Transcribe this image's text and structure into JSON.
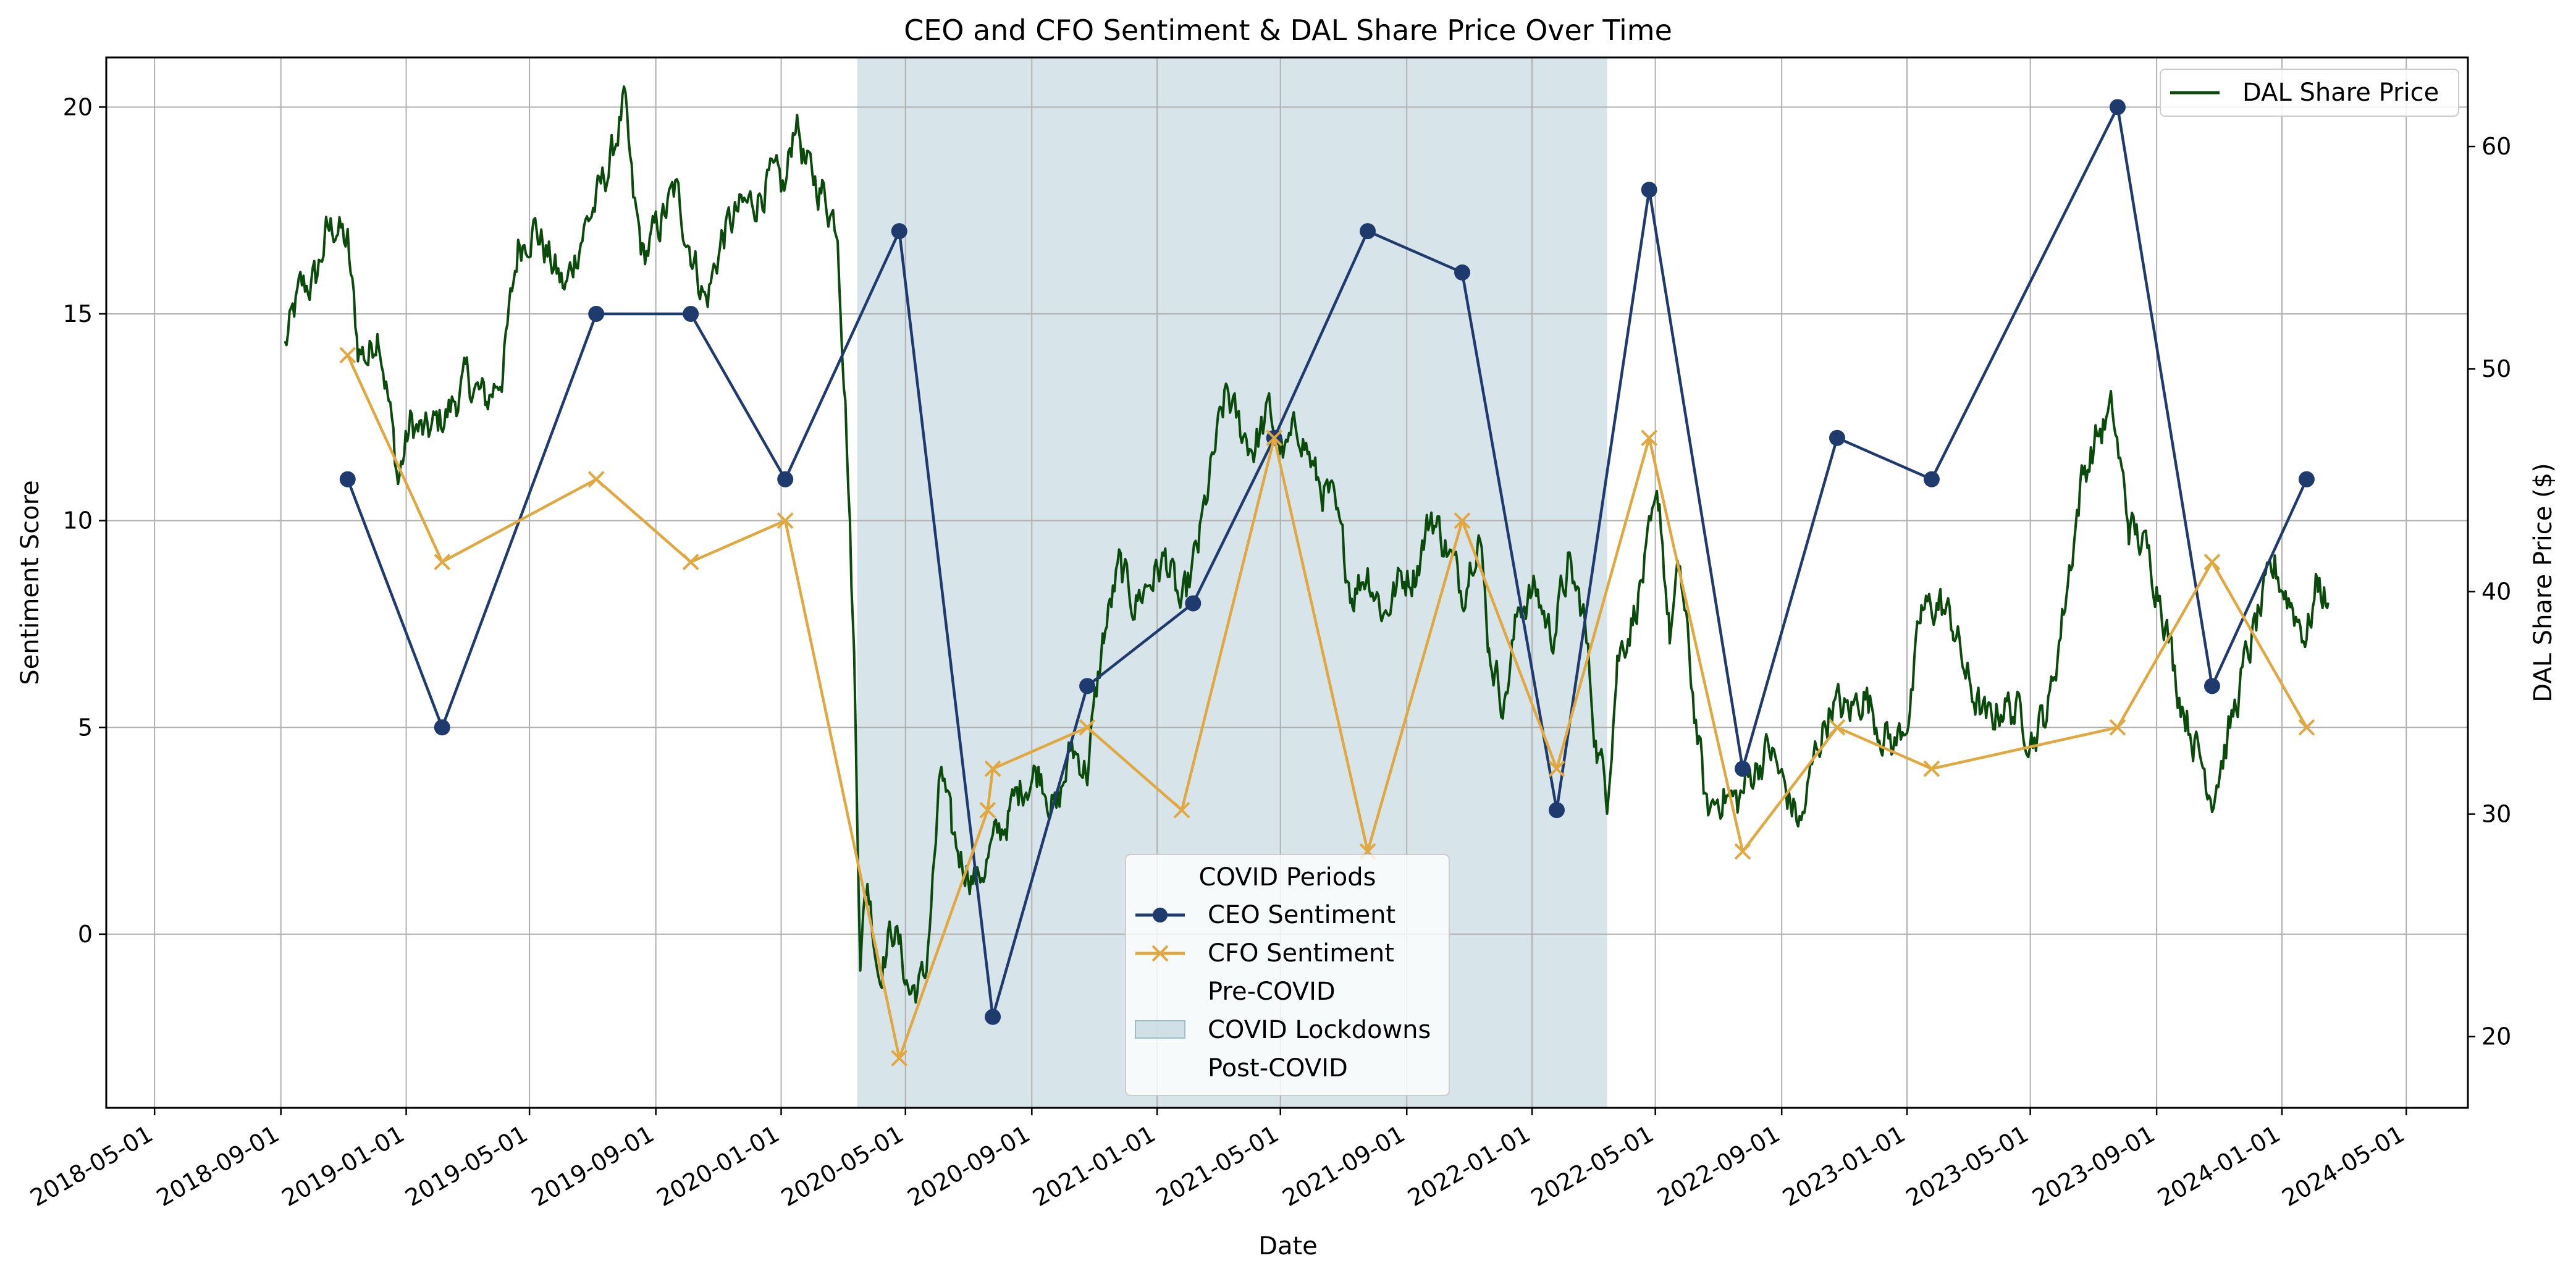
{
  "chart_data": {
    "type": "line",
    "title": "CEO and CFO Sentiment & DAL Share Price Over Time",
    "xlabel": "Date",
    "ylabel": "Sentiment Score",
    "y2label": "DAL Share Price ($)",
    "x_ticks": [
      "2018-05-01",
      "2018-09-01",
      "2019-01-01",
      "2019-05-01",
      "2019-09-01",
      "2020-01-01",
      "2020-05-01",
      "2020-09-01",
      "2021-01-01",
      "2021-05-01",
      "2021-09-01",
      "2022-01-01",
      "2022-05-01",
      "2022-09-01",
      "2023-01-01",
      "2023-05-01",
      "2023-09-01",
      "2024-01-01",
      "2024-05-01"
    ],
    "xlim": [
      "2018-03-15",
      "2024-06-30"
    ],
    "ylim": [
      -4.2,
      21.2
    ],
    "y_ticks": [
      0,
      5,
      10,
      15,
      20
    ],
    "y2lim": [
      16.8,
      64.0
    ],
    "y2_ticks": [
      20,
      30,
      40,
      50,
      60
    ],
    "grid": true,
    "covid_lockdown_period": [
      "2020-03-15",
      "2022-03-15"
    ],
    "series": [
      {
        "name": "CEO Sentiment",
        "axis": "left",
        "color": "#1f3b6e",
        "marker": "circle",
        "x": [
          "2018-11-05",
          "2019-02-05",
          "2019-07-05",
          "2019-10-05",
          "2020-01-05",
          "2020-04-25",
          "2020-07-25",
          "2020-10-25",
          "2021-02-05",
          "2021-04-25",
          "2021-07-25",
          "2021-10-25",
          "2022-01-25",
          "2022-04-25",
          "2022-07-25",
          "2022-10-25",
          "2023-01-25",
          "2023-07-25",
          "2023-10-25",
          "2024-01-25"
        ],
        "values": [
          11,
          5,
          15,
          15,
          11,
          17,
          -2,
          6,
          8,
          12,
          17,
          16,
          3,
          18,
          4,
          12,
          11,
          20,
          6,
          11
        ]
      },
      {
        "name": "CFO Sentiment",
        "axis": "left",
        "color": "#e0a83e",
        "marker": "x",
        "x": [
          "2018-11-05",
          "2019-02-05",
          "2019-07-05",
          "2019-10-05",
          "2020-01-05",
          "2020-04-25",
          "2020-07-20",
          "2020-07-25",
          "2020-10-25",
          "2021-01-25",
          "2021-04-25",
          "2021-07-25",
          "2021-10-25",
          "2022-01-25",
          "2022-04-25",
          "2022-07-25",
          "2022-10-25",
          "2023-01-25",
          "2023-07-25",
          "2023-10-25",
          "2024-01-25"
        ],
        "values": [
          14,
          9,
          11,
          9,
          10,
          -3,
          3,
          4,
          5,
          3,
          12,
          2,
          10,
          4,
          12,
          2,
          5,
          4,
          5,
          9,
          5
        ]
      },
      {
        "name": "DAL Share Price",
        "axis": "right",
        "color": "#0a4a0a",
        "marker": "none",
        "anchors": [
          [
            "2018-09-05",
            51.0
          ],
          [
            "2018-09-20",
            53.5
          ],
          [
            "2018-10-05",
            54.0
          ],
          [
            "2018-10-15",
            56.0
          ],
          [
            "2018-10-25",
            56.5
          ],
          [
            "2018-11-05",
            55.5
          ],
          [
            "2018-11-15",
            51.0
          ],
          [
            "2018-11-25",
            50.5
          ],
          [
            "2018-12-05",
            52.0
          ],
          [
            "2018-12-15",
            48.5
          ],
          [
            "2018-12-24",
            45.0
          ],
          [
            "2019-01-05",
            47.5
          ],
          [
            "2019-01-20",
            47.0
          ],
          [
            "2019-02-10",
            48.0
          ],
          [
            "2019-03-01",
            49.5
          ],
          [
            "2019-03-20",
            48.5
          ],
          [
            "2019-04-05",
            50.0
          ],
          [
            "2019-04-20",
            55.5
          ],
          [
            "2019-05-05",
            56.5
          ],
          [
            "2019-05-20",
            55.0
          ],
          [
            "2019-06-05",
            53.5
          ],
          [
            "2019-06-20",
            56.0
          ],
          [
            "2019-07-05",
            57.5
          ],
          [
            "2019-07-20",
            59.5
          ],
          [
            "2019-08-01",
            62.0
          ],
          [
            "2019-08-10",
            57.5
          ],
          [
            "2019-08-20",
            55.0
          ],
          [
            "2019-09-05",
            56.5
          ],
          [
            "2019-09-20",
            58.0
          ],
          [
            "2019-10-05",
            55.5
          ],
          [
            "2019-10-20",
            53.0
          ],
          [
            "2019-11-05",
            56.0
          ],
          [
            "2019-11-20",
            57.0
          ],
          [
            "2019-12-05",
            57.5
          ],
          [
            "2019-12-20",
            58.5
          ],
          [
            "2020-01-05",
            58.0
          ],
          [
            "2020-01-15",
            61.5
          ],
          [
            "2020-01-25",
            59.0
          ],
          [
            "2020-02-10",
            58.0
          ],
          [
            "2020-02-25",
            56.5
          ],
          [
            "2020-03-05",
            47.0
          ],
          [
            "2020-03-12",
            37.0
          ],
          [
            "2020-03-18",
            24.0
          ],
          [
            "2020-03-25",
            27.0
          ],
          [
            "2020-04-05",
            23.0
          ],
          [
            "2020-04-20",
            25.0
          ],
          [
            "2020-05-05",
            22.0
          ],
          [
            "2020-05-20",
            22.5
          ],
          [
            "2020-06-05",
            32.0
          ],
          [
            "2020-06-15",
            29.0
          ],
          [
            "2020-06-25",
            28.0
          ],
          [
            "2020-07-10",
            27.0
          ],
          [
            "2020-07-25",
            28.5
          ],
          [
            "2020-08-10",
            30.0
          ],
          [
            "2020-08-25",
            31.5
          ],
          [
            "2020-09-10",
            32.0
          ],
          [
            "2020-09-25",
            30.0
          ],
          [
            "2020-10-10",
            33.0
          ],
          [
            "2020-10-25",
            32.0
          ],
          [
            "2020-11-10",
            38.0
          ],
          [
            "2020-11-25",
            41.0
          ],
          [
            "2020-12-10",
            39.5
          ],
          [
            "2020-12-25",
            40.5
          ],
          [
            "2021-01-10",
            41.5
          ],
          [
            "2021-01-25",
            39.0
          ],
          [
            "2021-02-10",
            42.0
          ],
          [
            "2021-02-25",
            46.0
          ],
          [
            "2021-03-10",
            49.0
          ],
          [
            "2021-03-20",
            47.5
          ],
          [
            "2021-04-05",
            46.5
          ],
          [
            "2021-04-20",
            48.0
          ],
          [
            "2021-05-05",
            46.0
          ],
          [
            "2021-05-20",
            47.5
          ],
          [
            "2021-06-05",
            45.0
          ],
          [
            "2021-06-20",
            44.0
          ],
          [
            "2021-07-10",
            40.0
          ],
          [
            "2021-07-25",
            41.0
          ],
          [
            "2021-08-10",
            39.0
          ],
          [
            "2021-08-25",
            40.5
          ],
          [
            "2021-09-10",
            41.0
          ],
          [
            "2021-09-25",
            43.5
          ],
          [
            "2021-10-10",
            42.0
          ],
          [
            "2021-10-25",
            40.0
          ],
          [
            "2021-11-10",
            43.0
          ],
          [
            "2021-11-20",
            37.5
          ],
          [
            "2021-12-05",
            35.0
          ],
          [
            "2021-12-20",
            39.5
          ],
          [
            "2022-01-05",
            40.0
          ],
          [
            "2022-01-20",
            38.0
          ],
          [
            "2022-02-05",
            41.0
          ],
          [
            "2022-02-20",
            39.0
          ],
          [
            "2022-03-05",
            33.0
          ],
          [
            "2022-03-15",
            31.0
          ],
          [
            "2022-03-25",
            37.0
          ],
          [
            "2022-04-10",
            39.0
          ],
          [
            "2022-04-25",
            42.0
          ],
          [
            "2022-05-05",
            44.0
          ],
          [
            "2022-05-15",
            38.0
          ],
          [
            "2022-05-25",
            41.0
          ],
          [
            "2022-06-05",
            36.0
          ],
          [
            "2022-06-20",
            30.0
          ],
          [
            "2022-07-05",
            31.0
          ],
          [
            "2022-07-20",
            30.5
          ],
          [
            "2022-08-05",
            32.0
          ],
          [
            "2022-08-20",
            33.0
          ],
          [
            "2022-09-05",
            31.0
          ],
          [
            "2022-09-20",
            29.5
          ],
          [
            "2022-10-05",
            33.0
          ],
          [
            "2022-10-20",
            35.0
          ],
          [
            "2022-11-05",
            34.5
          ],
          [
            "2022-11-20",
            35.5
          ],
          [
            "2022-12-05",
            34.0
          ],
          [
            "2022-12-20",
            33.0
          ],
          [
            "2023-01-05",
            35.0
          ],
          [
            "2023-01-15",
            39.0
          ],
          [
            "2023-02-01",
            39.5
          ],
          [
            "2023-02-15",
            38.5
          ],
          [
            "2023-03-01",
            36.0
          ],
          [
            "2023-03-20",
            34.0
          ],
          [
            "2023-04-05",
            35.0
          ],
          [
            "2023-04-20",
            34.5
          ],
          [
            "2023-05-05",
            33.5
          ],
          [
            "2023-05-20",
            35.0
          ],
          [
            "2023-06-05",
            40.0
          ],
          [
            "2023-06-20",
            45.0
          ],
          [
            "2023-07-05",
            47.0
          ],
          [
            "2023-07-20",
            48.0
          ],
          [
            "2023-08-05",
            43.0
          ],
          [
            "2023-08-20",
            42.0
          ],
          [
            "2023-09-05",
            40.0
          ],
          [
            "2023-09-20",
            36.0
          ],
          [
            "2023-10-10",
            33.0
          ],
          [
            "2023-10-25",
            31.0
          ],
          [
            "2023-11-10",
            33.5
          ],
          [
            "2023-11-25",
            36.5
          ],
          [
            "2023-12-10",
            39.0
          ],
          [
            "2023-12-25",
            41.0
          ],
          [
            "2024-01-10",
            39.5
          ],
          [
            "2024-01-25",
            38.0
          ],
          [
            "2024-02-05",
            40.5
          ],
          [
            "2024-02-15",
            39.5
          ]
        ]
      }
    ],
    "legend_main": {
      "placement": "bottom-center",
      "title": "COVID Periods",
      "entries": [
        "CEO Sentiment",
        "CFO Sentiment",
        "Pre-COVID",
        "COVID Lockdowns",
        "Post-COVID"
      ]
    },
    "legend_price": {
      "placement": "top-right",
      "entries": [
        "DAL Share Price"
      ]
    },
    "colors": {
      "ceo": "#1f3b6e",
      "cfo": "#e0a83e",
      "price": "#0a4a0a",
      "covid_band": "#b7cfda",
      "grid": "#b0b0b0"
    }
  }
}
